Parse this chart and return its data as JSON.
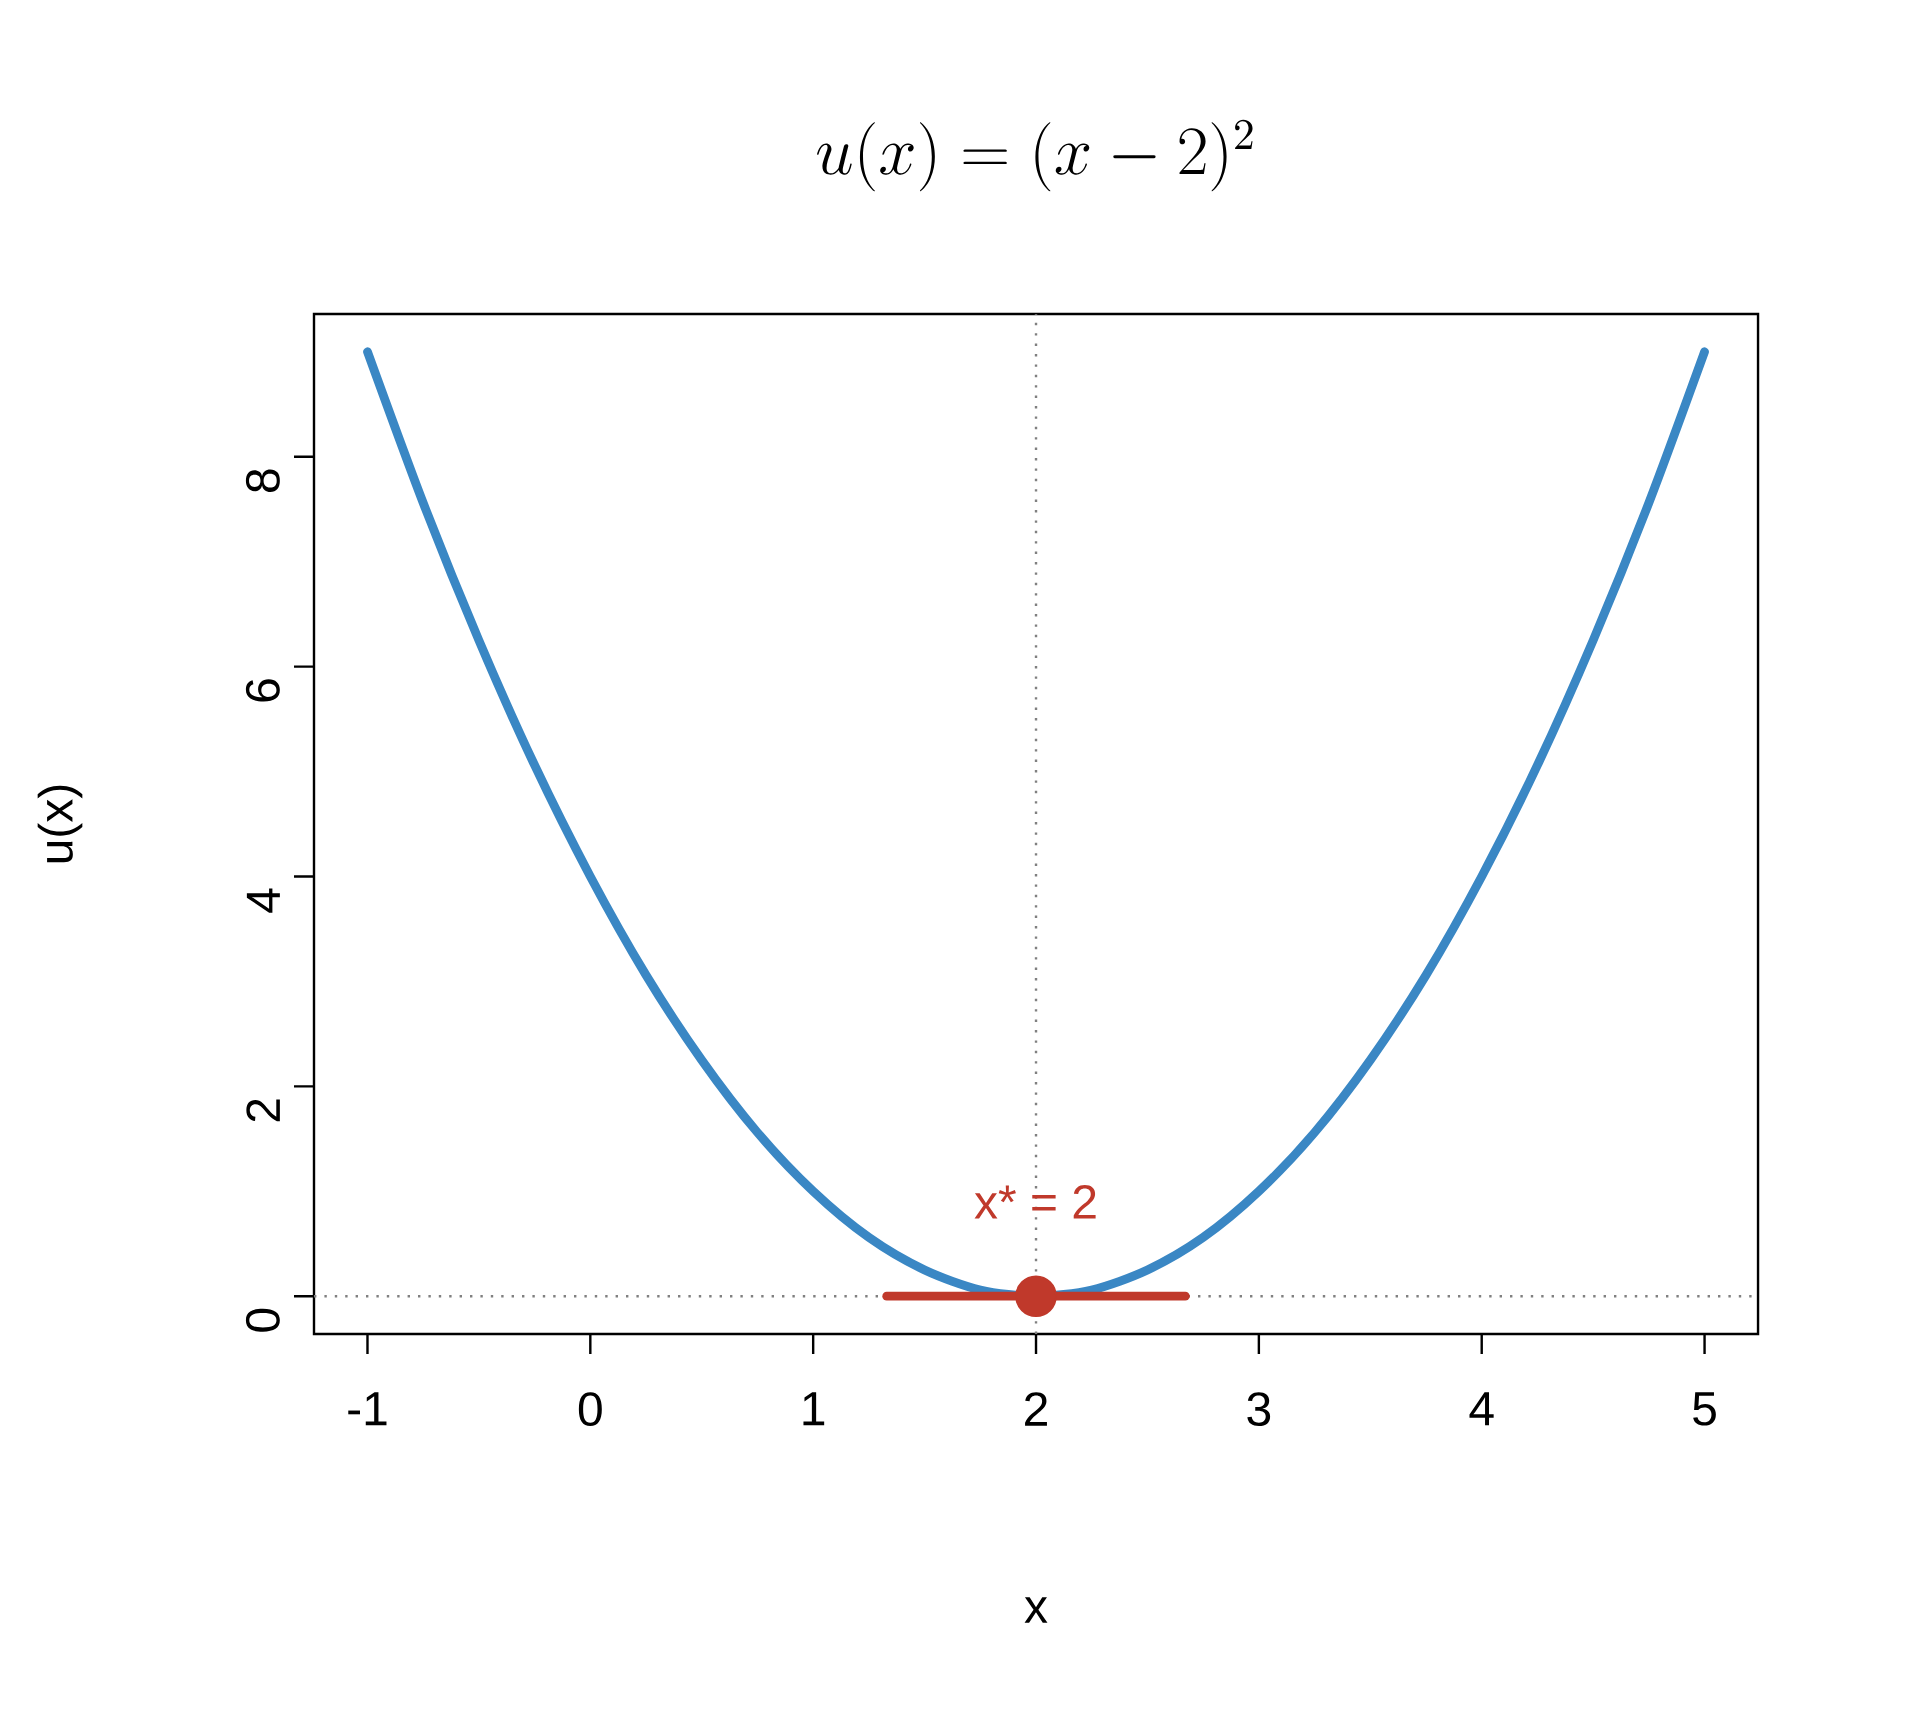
{
  "chart_data": {
    "type": "line",
    "title": "u(x) = (x - 2)^{2}",
    "xlabel": "x",
    "ylabel": "u(x)",
    "xlim": [
      -1.24,
      5.24
    ],
    "ylim": [
      -0.36,
      9.36
    ],
    "xticks": [
      -1,
      0,
      1,
      2,
      3,
      4,
      5
    ],
    "yticks": [
      0,
      2,
      4,
      6,
      8
    ],
    "series": [
      {
        "color": "#3a87c4",
        "x": [
          -1,
          -0.75,
          -0.5,
          -0.25,
          0,
          0.25,
          0.5,
          0.75,
          1,
          1.25,
          1.5,
          1.75,
          2,
          2.25,
          2.5,
          2.75,
          3,
          3.25,
          3.5,
          3.75,
          4,
          4.25,
          4.5,
          4.75,
          5
        ],
        "values": [
          9,
          7.56,
          6.25,
          5.06,
          4,
          3.06,
          2.25,
          1.56,
          1,
          0.56,
          0.25,
          0.06,
          0,
          0.06,
          0.25,
          0.56,
          1,
          1.56,
          2.25,
          3.06,
          4,
          5.06,
          6.25,
          7.56,
          9
        ]
      },
      {
        "color": "#c0392b",
        "x": [
          1.33,
          2.67
        ],
        "values": [
          0,
          0
        ]
      },
      {
        "type": "scatter",
        "color": "#c0392b",
        "x": [
          2
        ],
        "values": [
          0
        ]
      }
    ],
    "ref_lines": [
      {
        "axis": "x",
        "value": 2,
        "color": "#808080",
        "line_style": "dotted"
      },
      {
        "axis": "y",
        "value": 0,
        "color": "#808080",
        "line_style": "dotted"
      }
    ],
    "annotations": [
      {
        "text": "x* = 2",
        "x": 2,
        "y": 0.9
      }
    ]
  }
}
